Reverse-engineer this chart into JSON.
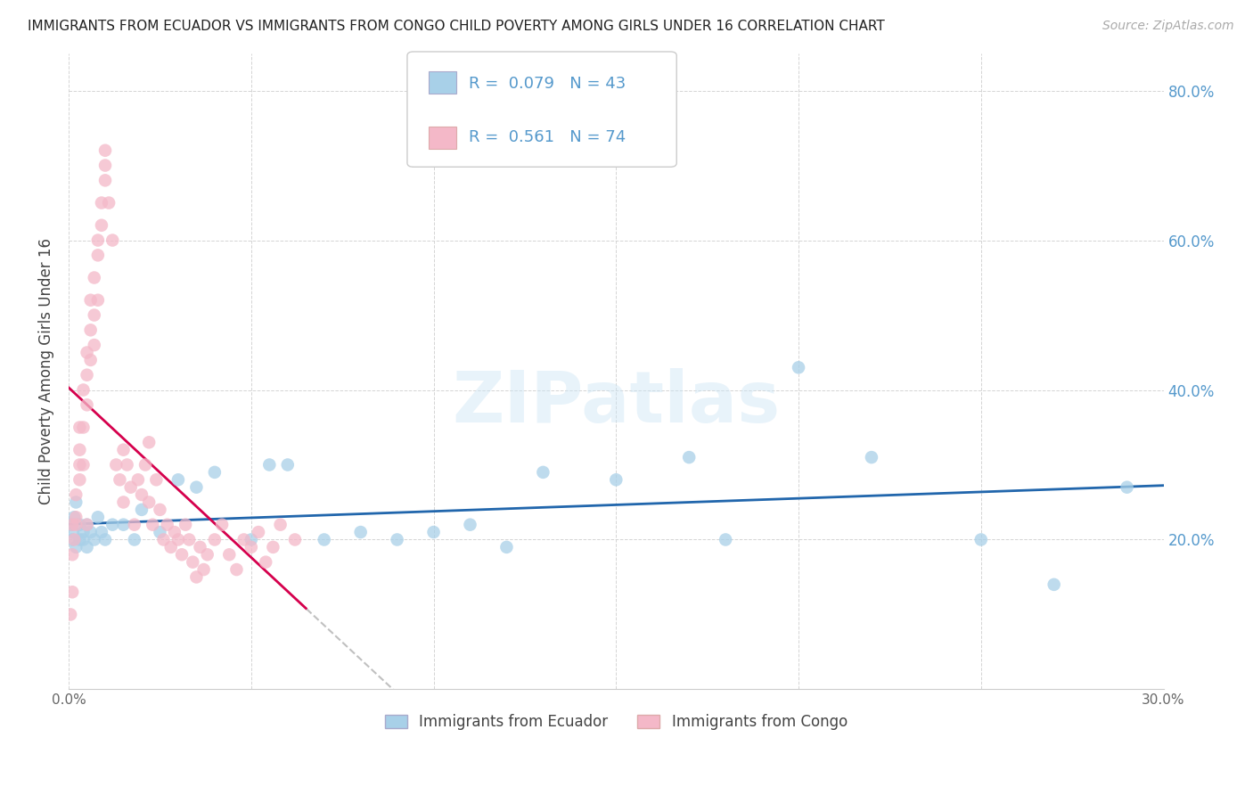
{
  "title": "IMMIGRANTS FROM ECUADOR VS IMMIGRANTS FROM CONGO CHILD POVERTY AMONG GIRLS UNDER 16 CORRELATION CHART",
  "source": "Source: ZipAtlas.com",
  "ylabel": "Child Poverty Among Girls Under 16",
  "legend_ecuador": "Immigrants from Ecuador",
  "legend_congo": "Immigrants from Congo",
  "R_ecuador": 0.079,
  "N_ecuador": 43,
  "R_congo": 0.561,
  "N_congo": 74,
  "xlim": [
    0.0,
    0.3
  ],
  "ylim": [
    0.0,
    0.85
  ],
  "color_ecuador": "#a8d0e8",
  "color_ecuador_line": "#2166ac",
  "color_congo": "#f4b8c8",
  "color_congo_line": "#d6004d",
  "color_dashed": "#c0c0c0",
  "color_right_axis": "#5599cc",
  "color_axis_text": "#666666",
  "ecuador_x": [
    0.0008,
    0.001,
    0.0012,
    0.0015,
    0.002,
    0.002,
    0.003,
    0.003,
    0.004,
    0.004,
    0.005,
    0.005,
    0.006,
    0.007,
    0.008,
    0.009,
    0.01,
    0.012,
    0.015,
    0.018,
    0.02,
    0.025,
    0.03,
    0.035,
    0.04,
    0.05,
    0.055,
    0.06,
    0.07,
    0.08,
    0.09,
    0.1,
    0.11,
    0.12,
    0.13,
    0.15,
    0.17,
    0.18,
    0.2,
    0.22,
    0.25,
    0.27,
    0.29
  ],
  "ecuador_y": [
    0.22,
    0.2,
    0.21,
    0.23,
    0.25,
    0.19,
    0.22,
    0.2,
    0.21,
    0.2,
    0.19,
    0.22,
    0.21,
    0.2,
    0.23,
    0.21,
    0.2,
    0.22,
    0.22,
    0.2,
    0.24,
    0.21,
    0.28,
    0.27,
    0.29,
    0.2,
    0.3,
    0.3,
    0.2,
    0.21,
    0.2,
    0.21,
    0.22,
    0.19,
    0.29,
    0.28,
    0.31,
    0.2,
    0.43,
    0.31,
    0.2,
    0.14,
    0.27
  ],
  "congo_x": [
    0.0005,
    0.001,
    0.001,
    0.001,
    0.0015,
    0.002,
    0.002,
    0.002,
    0.003,
    0.003,
    0.003,
    0.003,
    0.004,
    0.004,
    0.004,
    0.005,
    0.005,
    0.005,
    0.005,
    0.006,
    0.006,
    0.006,
    0.007,
    0.007,
    0.007,
    0.008,
    0.008,
    0.008,
    0.009,
    0.009,
    0.01,
    0.01,
    0.01,
    0.011,
    0.012,
    0.013,
    0.014,
    0.015,
    0.015,
    0.016,
    0.017,
    0.018,
    0.019,
    0.02,
    0.021,
    0.022,
    0.022,
    0.023,
    0.024,
    0.025,
    0.026,
    0.027,
    0.028,
    0.029,
    0.03,
    0.031,
    0.032,
    0.033,
    0.034,
    0.035,
    0.036,
    0.037,
    0.038,
    0.04,
    0.042,
    0.044,
    0.046,
    0.048,
    0.05,
    0.052,
    0.054,
    0.056,
    0.058,
    0.062
  ],
  "congo_y": [
    0.1,
    0.13,
    0.18,
    0.22,
    0.2,
    0.23,
    0.26,
    0.22,
    0.28,
    0.3,
    0.35,
    0.32,
    0.3,
    0.35,
    0.4,
    0.38,
    0.42,
    0.45,
    0.22,
    0.44,
    0.48,
    0.52,
    0.46,
    0.5,
    0.55,
    0.52,
    0.58,
    0.6,
    0.62,
    0.65,
    0.68,
    0.7,
    0.72,
    0.65,
    0.6,
    0.3,
    0.28,
    0.32,
    0.25,
    0.3,
    0.27,
    0.22,
    0.28,
    0.26,
    0.3,
    0.25,
    0.33,
    0.22,
    0.28,
    0.24,
    0.2,
    0.22,
    0.19,
    0.21,
    0.2,
    0.18,
    0.22,
    0.2,
    0.17,
    0.15,
    0.19,
    0.16,
    0.18,
    0.2,
    0.22,
    0.18,
    0.16,
    0.2,
    0.19,
    0.21,
    0.17,
    0.19,
    0.22,
    0.2
  ],
  "watermark": "ZIPatlas",
  "background_color": "#ffffff"
}
